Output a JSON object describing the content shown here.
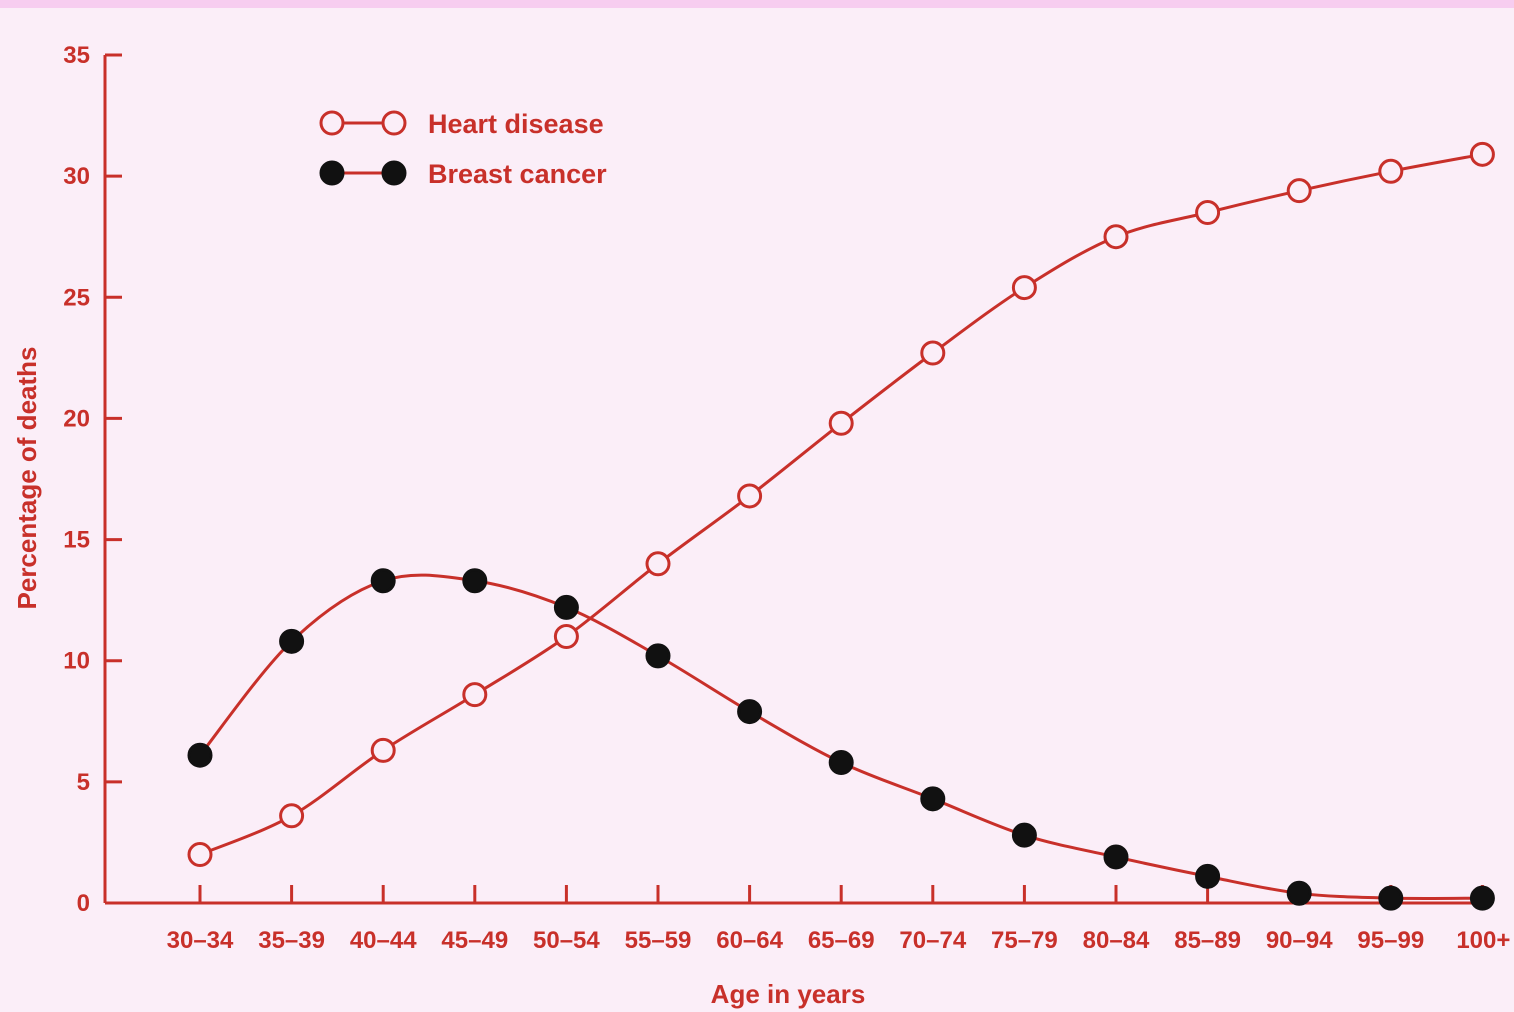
{
  "chart_data": {
    "type": "line",
    "categories": [
      "30–34",
      "35–39",
      "40–44",
      "45–49",
      "50–54",
      "55–59",
      "60–64",
      "65–69",
      "70–74",
      "75–79",
      "80–84",
      "85–89",
      "90–94",
      "95–99",
      "100+"
    ],
    "series": [
      {
        "name": "Heart disease",
        "marker": "open-circle",
        "values": [
          2.0,
          3.6,
          6.3,
          8.6,
          11.0,
          14.0,
          16.8,
          19.8,
          22.7,
          25.4,
          27.5,
          28.5,
          29.4,
          30.2,
          30.9
        ]
      },
      {
        "name": "Breast cancer",
        "marker": "filled-circle",
        "values": [
          6.1,
          10.8,
          13.3,
          13.3,
          12.2,
          10.2,
          7.9,
          5.8,
          4.3,
          2.8,
          1.9,
          1.1,
          0.4,
          0.2,
          0.2
        ]
      }
    ],
    "title": "",
    "xlabel": "Age in years",
    "ylabel": "Percentage of deaths",
    "ylim": [
      0,
      35
    ],
    "yticks": [
      0,
      5,
      10,
      15,
      20,
      25,
      30,
      35
    ],
    "grid": false,
    "legend_position": "top-left",
    "colors": {
      "line": "#c8302a",
      "marker_fill_open": "#fbeef8",
      "marker_fill_closed": "#111111",
      "text": "#c8302a",
      "background": "#fbeef8"
    }
  }
}
